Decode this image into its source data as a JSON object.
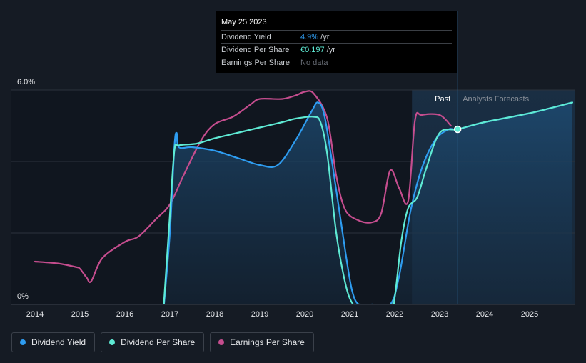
{
  "chart_data": {
    "type": "line",
    "title": "",
    "y_axis": {
      "ylim": [
        0,
        6.0
      ],
      "labels": [
        "6.0%",
        "0%"
      ]
    },
    "x_axis": {
      "ticks": [
        "2014",
        "2015",
        "2016",
        "2017",
        "2018",
        "2019",
        "2020",
        "2021",
        "2022",
        "2023",
        "2024",
        "2025"
      ]
    },
    "regions": {
      "past_label": "Past",
      "forecast_label": "Analysts Forecasts",
      "divider_date": 2023.4
    },
    "series": [
      {
        "name": "Dividend Yield",
        "color": "#2e9cf0",
        "points": [
          [
            2016.85,
            -0.3
          ],
          [
            2017.0,
            2.0
          ],
          [
            2017.1,
            4.4
          ],
          [
            2017.15,
            4.8
          ],
          [
            2017.2,
            4.4
          ],
          [
            2017.5,
            4.4
          ],
          [
            2018.0,
            4.3
          ],
          [
            2018.5,
            4.1
          ],
          [
            2019.0,
            3.9
          ],
          [
            2019.4,
            3.9
          ],
          [
            2019.8,
            4.6
          ],
          [
            2020.15,
            5.4
          ],
          [
            2020.3,
            5.65
          ],
          [
            2020.45,
            5.2
          ],
          [
            2020.7,
            3.2
          ],
          [
            2020.9,
            1.5
          ],
          [
            2021.05,
            0.4
          ],
          [
            2021.2,
            0.0
          ],
          [
            2021.5,
            0.0
          ],
          [
            2021.9,
            0.0
          ],
          [
            2022.1,
            0.8
          ],
          [
            2022.35,
            2.6
          ],
          [
            2022.6,
            3.8
          ],
          [
            2022.9,
            4.6
          ],
          [
            2023.2,
            4.9
          ],
          [
            2023.4,
            4.9
          ],
          [
            2024.0,
            5.1
          ],
          [
            2025.0,
            5.35
          ],
          [
            2025.95,
            5.65
          ]
        ]
      },
      {
        "name": "Dividend Per Share",
        "color": "#5eead4",
        "points": [
          [
            2016.85,
            -0.3
          ],
          [
            2017.0,
            2.5
          ],
          [
            2017.1,
            4.3
          ],
          [
            2017.2,
            4.45
          ],
          [
            2017.6,
            4.5
          ],
          [
            2018.0,
            4.65
          ],
          [
            2018.5,
            4.8
          ],
          [
            2019.0,
            4.95
          ],
          [
            2019.5,
            5.1
          ],
          [
            2019.8,
            5.2
          ],
          [
            2020.2,
            5.25
          ],
          [
            2020.35,
            5.1
          ],
          [
            2020.5,
            4.2
          ],
          [
            2020.7,
            2.0
          ],
          [
            2020.9,
            0.6
          ],
          [
            2021.05,
            0.05
          ],
          [
            2021.2,
            0.0
          ],
          [
            2021.9,
            0.0
          ],
          [
            2022.0,
            0.2
          ],
          [
            2022.15,
            1.8
          ],
          [
            2022.3,
            2.7
          ],
          [
            2022.5,
            3.0
          ],
          [
            2022.7,
            3.8
          ],
          [
            2023.0,
            4.8
          ],
          [
            2023.4,
            4.9
          ],
          [
            2024.0,
            5.1
          ],
          [
            2025.0,
            5.35
          ],
          [
            2025.95,
            5.65
          ]
        ]
      },
      {
        "name": "Earnings Per Share",
        "color": "#c54d8e",
        "points": [
          [
            2014.0,
            1.2
          ],
          [
            2014.5,
            1.15
          ],
          [
            2014.9,
            1.05
          ],
          [
            2015.0,
            1.0
          ],
          [
            2015.15,
            0.75
          ],
          [
            2015.25,
            0.65
          ],
          [
            2015.5,
            1.3
          ],
          [
            2016.0,
            1.75
          ],
          [
            2016.3,
            1.9
          ],
          [
            2016.7,
            2.4
          ],
          [
            2017.0,
            2.8
          ],
          [
            2017.3,
            3.6
          ],
          [
            2017.7,
            4.6
          ],
          [
            2018.0,
            5.05
          ],
          [
            2018.4,
            5.25
          ],
          [
            2018.8,
            5.6
          ],
          [
            2019.0,
            5.75
          ],
          [
            2019.5,
            5.75
          ],
          [
            2019.8,
            5.85
          ],
          [
            2020.0,
            5.95
          ],
          [
            2020.2,
            5.9
          ],
          [
            2020.5,
            5.2
          ],
          [
            2020.7,
            3.6
          ],
          [
            2020.9,
            2.65
          ],
          [
            2021.2,
            2.35
          ],
          [
            2021.5,
            2.3
          ],
          [
            2021.7,
            2.55
          ],
          [
            2021.9,
            3.75
          ],
          [
            2022.1,
            3.25
          ],
          [
            2022.3,
            2.9
          ],
          [
            2022.45,
            5.15
          ],
          [
            2022.6,
            5.3
          ],
          [
            2023.0,
            5.3
          ],
          [
            2023.25,
            5.0
          ]
        ]
      }
    ],
    "highlight_point": {
      "x": 2023.4,
      "y": 4.9
    }
  },
  "tooltip": {
    "date": "May 25 2023",
    "rows": [
      {
        "label": "Dividend Yield",
        "value": "4.9%",
        "unit": " /yr"
      },
      {
        "label": "Dividend Per Share",
        "value": "€0.197",
        "unit": " /yr"
      },
      {
        "label": "Earnings Per Share",
        "value": "No data",
        "unit": ""
      }
    ]
  },
  "legend": [
    {
      "label": "Dividend Yield",
      "color": "#2e9cf0"
    },
    {
      "label": "Dividend Per Share",
      "color": "#5eead4"
    },
    {
      "label": "Earnings Per Share",
      "color": "#c54d8e"
    }
  ]
}
